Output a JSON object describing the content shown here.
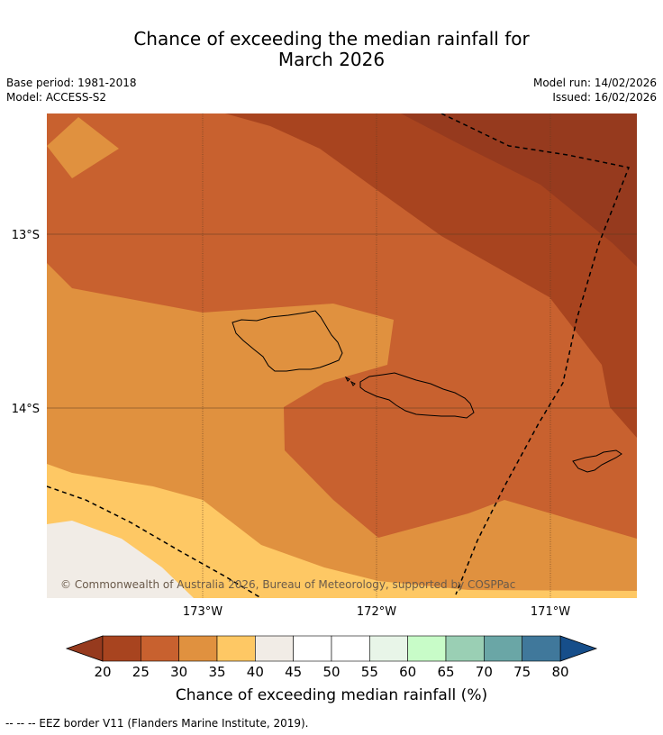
{
  "title_line1": "Chance of exceeding the median rainfall for",
  "title_line2": "March 2026",
  "base_period": "Base period: 1981-2018",
  "model": "Model: ACCESS-S2",
  "model_run": "Model run: 14/02/2026",
  "issued": "Issued: 16/02/2026",
  "copyright": "© Commonwealth of Australia 2026, Bureau of Meteorology, supported by COSPPac",
  "lat_labels": [
    "13°S",
    "14°S"
  ],
  "lon_labels": [
    "173°W",
    "172°W",
    "171°W"
  ],
  "colorbar": {
    "label": "Chance of exceeding median rainfall (%)",
    "ticks": [
      "20",
      "25",
      "30",
      "35",
      "40",
      "45",
      "50",
      "55",
      "60",
      "65",
      "70",
      "75",
      "80"
    ],
    "colors": [
      "#a8441f",
      "#c8612f",
      "#e0913f",
      "#fec864",
      "#f1ece6",
      "#ffffff",
      "#ffffff",
      "#e8f5e8",
      "#c8fcc8",
      "#9acfb4",
      "#6aa6a6",
      "#40789b"
    ],
    "under_color": "#963a1e",
    "over_color": "#164e8a"
  },
  "footnote": "-- -- -- EEZ border V11 (Flanders Marine Institute, 2019)."
}
